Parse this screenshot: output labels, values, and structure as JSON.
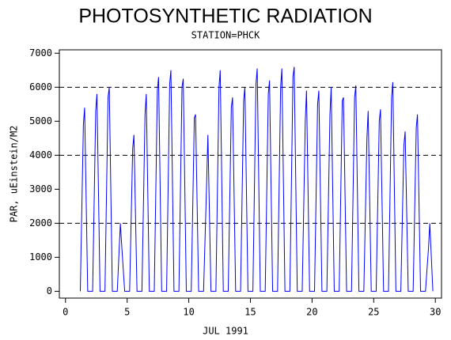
{
  "chart_data": {
    "type": "line",
    "title": "PHOTOSYNTHETIC RADIATION",
    "subtitle": "STATION=PHCK",
    "x_label": "JUL 1991",
    "y_label": "PAR, uEinstein/M2",
    "xlim": [
      -0.5,
      30.5
    ],
    "xticks": [
      0,
      5,
      10,
      15,
      20,
      25,
      30
    ],
    "ylim": [
      -200,
      7100
    ],
    "yticks": [
      0,
      1000,
      2000,
      3000,
      4000,
      5000,
      6000,
      7000
    ],
    "reference_lines": [
      2000,
      4000,
      6000
    ],
    "series": [
      {
        "name": "PAR",
        "color": "#0000ff",
        "x": [
          1.2,
          1.45,
          1.55,
          1.8,
          2.2,
          2.45,
          2.55,
          2.8,
          3.2,
          3.45,
          3.55,
          3.8,
          4.2,
          4.45,
          4.55,
          4.8,
          5.2,
          5.45,
          5.55,
          5.8,
          6.2,
          6.45,
          6.55,
          6.8,
          7.2,
          7.45,
          7.55,
          7.8,
          8.2,
          8.45,
          8.55,
          8.8,
          9.2,
          9.45,
          9.55,
          9.8,
          10.2,
          10.45,
          10.55,
          10.8,
          11.2,
          11.45,
          11.55,
          11.8,
          12.2,
          12.45,
          12.55,
          12.8,
          13.2,
          13.45,
          13.55,
          13.8,
          14.2,
          14.45,
          14.55,
          14.8,
          15.2,
          15.45,
          15.55,
          15.8,
          16.2,
          16.45,
          16.55,
          16.8,
          17.2,
          17.45,
          17.55,
          17.8,
          18.2,
          18.45,
          18.55,
          18.8,
          19.2,
          19.45,
          19.55,
          19.8,
          20.2,
          20.45,
          20.55,
          20.8,
          21.2,
          21.45,
          21.55,
          21.8,
          22.2,
          22.45,
          22.55,
          22.8,
          23.2,
          23.45,
          23.55,
          23.8,
          24.2,
          24.45,
          24.55,
          24.8,
          25.2,
          25.45,
          25.55,
          25.8,
          26.2,
          26.45,
          26.55,
          26.8,
          27.2,
          27.45,
          27.55,
          27.8,
          28.2,
          28.45,
          28.55,
          28.8,
          29.2,
          29.45,
          29.55,
          29.8
        ],
        "values": [
          0,
          4900,
          5400,
          0,
          0,
          5300,
          5800,
          0,
          0,
          5700,
          6000,
          0,
          0,
          2000,
          1400,
          0,
          0,
          4200,
          4600,
          0,
          0,
          5200,
          5800,
          0,
          0,
          5900,
          6300,
          0,
          0,
          6100,
          6500,
          0,
          0,
          6000,
          6250,
          0,
          0,
          5100,
          5200,
          0,
          0,
          3200,
          4600,
          0,
          0,
          6000,
          6500,
          0,
          0,
          5400,
          5700,
          0,
          0,
          5600,
          6000,
          0,
          0,
          6100,
          6550,
          0,
          0,
          5800,
          6200,
          0,
          0,
          6000,
          6550,
          0,
          0,
          6300,
          6600,
          0,
          0,
          5000,
          5900,
          0,
          0,
          5500,
          5900,
          0,
          0,
          5200,
          6000,
          0,
          0,
          5600,
          5700,
          0,
          0,
          5700,
          6050,
          0,
          0,
          4500,
          5300,
          0,
          0,
          5000,
          5350,
          0,
          0,
          5700,
          6150,
          0,
          0,
          4300,
          4700,
          0,
          0,
          4800,
          5200,
          0,
          0,
          1300,
          2000,
          0
        ]
      }
    ]
  }
}
